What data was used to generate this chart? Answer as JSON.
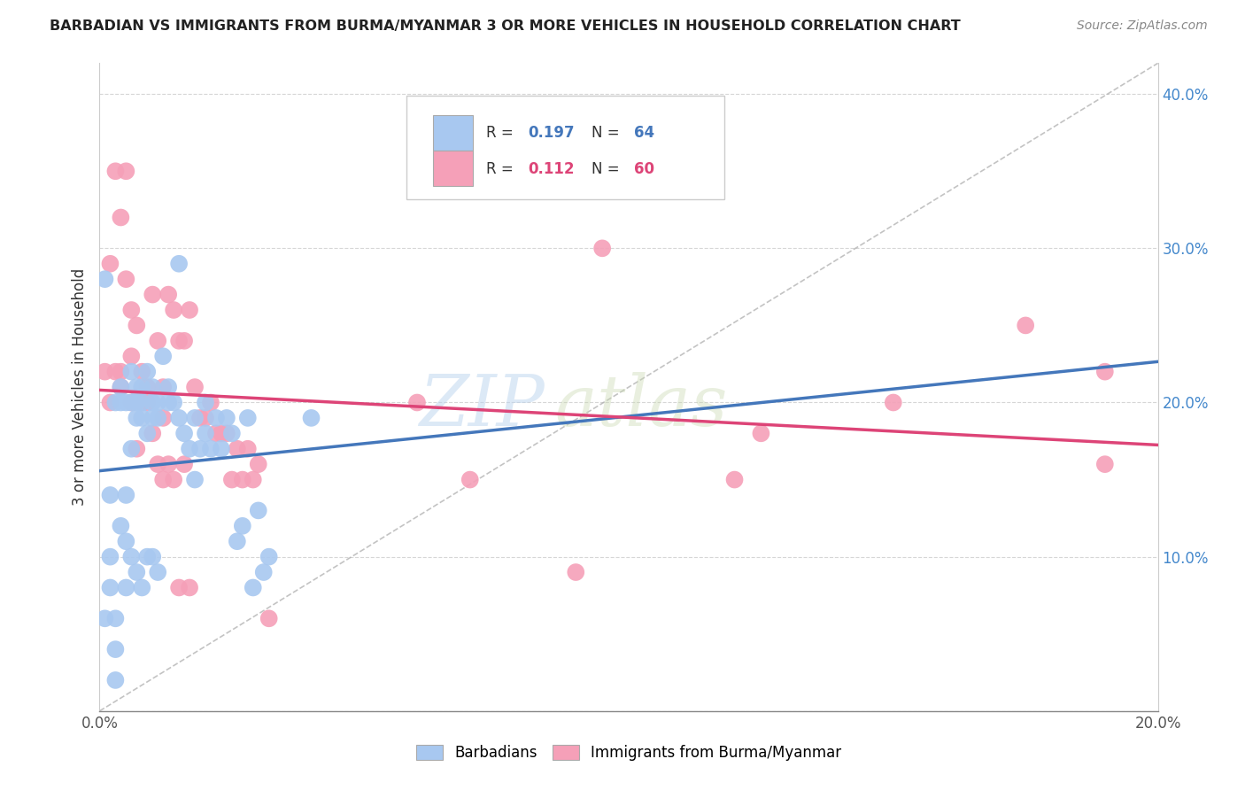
{
  "title": "BARBADIAN VS IMMIGRANTS FROM BURMA/MYANMAR 3 OR MORE VEHICLES IN HOUSEHOLD CORRELATION CHART",
  "source": "Source: ZipAtlas.com",
  "ylabel": "3 or more Vehicles in Household",
  "x_min": 0.0,
  "x_max": 0.2,
  "y_min": 0.0,
  "y_max": 0.42,
  "blue_color": "#a8c8f0",
  "pink_color": "#f5a0b8",
  "trend_blue": "#4477bb",
  "trend_pink": "#dd4477",
  "blue_R": 0.197,
  "blue_N": 64,
  "pink_R": 0.112,
  "pink_N": 60,
  "blue_scatter_x": [
    0.001,
    0.002,
    0.002,
    0.003,
    0.003,
    0.003,
    0.004,
    0.004,
    0.005,
    0.005,
    0.005,
    0.006,
    0.006,
    0.006,
    0.007,
    0.007,
    0.007,
    0.008,
    0.008,
    0.008,
    0.009,
    0.009,
    0.01,
    0.01,
    0.01,
    0.011,
    0.011,
    0.012,
    0.013,
    0.013,
    0.014,
    0.015,
    0.015,
    0.016,
    0.017,
    0.018,
    0.018,
    0.019,
    0.02,
    0.021,
    0.022,
    0.023,
    0.024,
    0.025,
    0.026,
    0.027,
    0.028,
    0.029,
    0.03,
    0.031,
    0.032,
    0.001,
    0.002,
    0.003,
    0.004,
    0.005,
    0.006,
    0.007,
    0.008,
    0.009,
    0.01,
    0.011,
    0.02,
    0.04
  ],
  "blue_scatter_y": [
    0.28,
    0.14,
    0.1,
    0.04,
    0.02,
    0.2,
    0.21,
    0.2,
    0.08,
    0.2,
    0.14,
    0.22,
    0.2,
    0.17,
    0.21,
    0.2,
    0.19,
    0.19,
    0.21,
    0.2,
    0.22,
    0.18,
    0.21,
    0.2,
    0.19,
    0.19,
    0.2,
    0.23,
    0.21,
    0.2,
    0.2,
    0.29,
    0.19,
    0.18,
    0.17,
    0.19,
    0.15,
    0.17,
    0.18,
    0.17,
    0.19,
    0.17,
    0.19,
    0.18,
    0.11,
    0.12,
    0.19,
    0.08,
    0.13,
    0.09,
    0.1,
    0.06,
    0.08,
    0.06,
    0.12,
    0.11,
    0.1,
    0.09,
    0.08,
    0.1,
    0.1,
    0.09,
    0.2,
    0.19
  ],
  "pink_scatter_x": [
    0.001,
    0.002,
    0.003,
    0.004,
    0.004,
    0.005,
    0.006,
    0.006,
    0.007,
    0.008,
    0.009,
    0.01,
    0.011,
    0.012,
    0.012,
    0.013,
    0.014,
    0.015,
    0.016,
    0.017,
    0.018,
    0.019,
    0.02,
    0.021,
    0.022,
    0.023,
    0.024,
    0.025,
    0.026,
    0.027,
    0.028,
    0.029,
    0.03,
    0.032,
    0.002,
    0.003,
    0.004,
    0.005,
    0.006,
    0.007,
    0.008,
    0.009,
    0.01,
    0.011,
    0.012,
    0.013,
    0.014,
    0.015,
    0.016,
    0.017,
    0.06,
    0.07,
    0.09,
    0.095,
    0.12,
    0.125,
    0.15,
    0.175,
    0.19,
    0.19
  ],
  "pink_scatter_y": [
    0.22,
    0.2,
    0.22,
    0.21,
    0.22,
    0.28,
    0.23,
    0.26,
    0.25,
    0.22,
    0.21,
    0.27,
    0.24,
    0.21,
    0.19,
    0.27,
    0.26,
    0.24,
    0.24,
    0.26,
    0.21,
    0.19,
    0.19,
    0.2,
    0.18,
    0.18,
    0.18,
    0.15,
    0.17,
    0.15,
    0.17,
    0.15,
    0.16,
    0.06,
    0.29,
    0.35,
    0.32,
    0.35,
    0.2,
    0.17,
    0.2,
    0.2,
    0.18,
    0.16,
    0.15,
    0.16,
    0.15,
    0.08,
    0.16,
    0.08,
    0.2,
    0.15,
    0.09,
    0.3,
    0.15,
    0.18,
    0.2,
    0.25,
    0.22,
    0.16
  ]
}
